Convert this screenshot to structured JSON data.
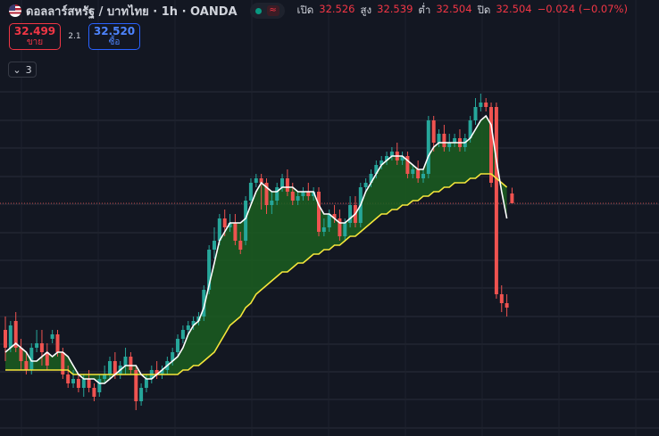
{
  "header": {
    "symbol_title": "ดอลลาร์สหรัฐ / บาทไทย · 1h · OANDA",
    "ohlc": [
      {
        "label": "เปิด",
        "value": "32.526"
      },
      {
        "label": "สูง",
        "value": "32.539"
      },
      {
        "label": "ต่ำ",
        "value": "32.504"
      },
      {
        "label": "ปิด",
        "value": "32.504"
      }
    ],
    "change": "−0.024 (−0.07%)"
  },
  "trade": {
    "sell_price": "32.499",
    "sell_label": "ขาย",
    "spread": "2.1",
    "buy_price": "32.520",
    "buy_label": "ซื้อ"
  },
  "indicators": {
    "count": "3"
  },
  "colors": {
    "background": "#131722",
    "up": "#26a69a",
    "down": "#ef5350",
    "fast_ma": "#ffffff",
    "slow_ma": "#f5e63a",
    "cloud_fill": "#1b5e20",
    "accent_red": "#f23645",
    "accent_blue": "#2962ff"
  },
  "chart_data": {
    "type": "candlestick",
    "y_range": [
      32.02,
      32.77
    ],
    "last_price": 32.504,
    "series": [
      {
        "name": "",
        "values": [
          {
            "o": 32.22,
            "h": 32.25,
            "c": 32.18,
            "l": 32.15
          },
          {
            "o": 32.18,
            "h": 32.24,
            "c": 32.23,
            "l": 32.17
          },
          {
            "o": 32.24,
            "h": 32.26,
            "c": 32.18,
            "l": 32.17
          },
          {
            "o": 32.18,
            "h": 32.2,
            "c": 32.15,
            "l": 32.13
          },
          {
            "o": 32.15,
            "h": 32.17,
            "c": 32.13,
            "l": 32.12
          },
          {
            "o": 32.13,
            "h": 32.19,
            "c": 32.18,
            "l": 32.12
          },
          {
            "o": 32.18,
            "h": 32.22,
            "c": 32.19,
            "l": 32.17
          },
          {
            "o": 32.19,
            "h": 32.22,
            "c": 32.17,
            "l": 32.14
          },
          {
            "o": 32.17,
            "h": 32.19,
            "c": 32.14,
            "l": 32.13
          },
          {
            "o": 32.2,
            "h": 32.22,
            "c": 32.21,
            "l": 32.19
          },
          {
            "o": 32.21,
            "h": 32.22,
            "c": 32.17,
            "l": 32.16
          },
          {
            "o": 32.17,
            "h": 32.18,
            "c": 32.12,
            "l": 32.11
          },
          {
            "o": 32.12,
            "h": 32.14,
            "c": 32.1,
            "l": 32.09
          },
          {
            "o": 32.1,
            "h": 32.13,
            "c": 32.11,
            "l": 32.09
          },
          {
            "o": 32.11,
            "h": 32.12,
            "c": 32.09,
            "l": 32.08
          },
          {
            "o": 32.09,
            "h": 32.12,
            "c": 32.11,
            "l": 32.07
          },
          {
            "o": 32.11,
            "h": 32.13,
            "c": 32.09,
            "l": 32.08
          },
          {
            "o": 32.09,
            "h": 32.1,
            "c": 32.07,
            "l": 32.06
          },
          {
            "o": 32.08,
            "h": 32.12,
            "c": 32.11,
            "l": 32.07
          },
          {
            "o": 32.11,
            "h": 32.14,
            "c": 32.12,
            "l": 32.1
          },
          {
            "o": 32.12,
            "h": 32.16,
            "c": 32.15,
            "l": 32.11
          },
          {
            "o": 32.15,
            "h": 32.17,
            "c": 32.12,
            "l": 32.11
          },
          {
            "o": 32.12,
            "h": 32.15,
            "c": 32.14,
            "l": 32.11
          },
          {
            "o": 32.14,
            "h": 32.18,
            "c": 32.16,
            "l": 32.12
          },
          {
            "o": 32.16,
            "h": 32.17,
            "c": 32.13,
            "l": 32.12
          },
          {
            "o": 32.13,
            "h": 32.14,
            "c": 32.06,
            "l": 32.04
          },
          {
            "o": 32.06,
            "h": 32.1,
            "c": 32.09,
            "l": 32.05
          },
          {
            "o": 32.09,
            "h": 32.12,
            "c": 32.11,
            "l": 32.08
          },
          {
            "o": 32.11,
            "h": 32.14,
            "c": 32.13,
            "l": 32.1
          },
          {
            "o": 32.13,
            "h": 32.15,
            "c": 32.12,
            "l": 32.11
          },
          {
            "o": 32.12,
            "h": 32.14,
            "c": 32.13,
            "l": 32.11
          },
          {
            "o": 32.13,
            "h": 32.16,
            "c": 32.15,
            "l": 32.12
          },
          {
            "o": 32.15,
            "h": 32.18,
            "c": 32.17,
            "l": 32.14
          },
          {
            "o": 32.17,
            "h": 32.21,
            "c": 32.2,
            "l": 32.16
          },
          {
            "o": 32.2,
            "h": 32.23,
            "c": 32.22,
            "l": 32.19
          },
          {
            "o": 32.22,
            "h": 32.24,
            "c": 32.23,
            "l": 32.21
          },
          {
            "o": 32.23,
            "h": 32.25,
            "c": 32.24,
            "l": 32.22
          },
          {
            "o": 32.24,
            "h": 32.26,
            "c": 32.25,
            "l": 32.23
          },
          {
            "o": 32.25,
            "h": 32.32,
            "c": 32.31,
            "l": 32.24
          },
          {
            "o": 32.31,
            "h": 32.41,
            "c": 32.4,
            "l": 32.3
          },
          {
            "o": 32.4,
            "h": 32.45,
            "c": 32.42,
            "l": 32.38
          },
          {
            "o": 32.42,
            "h": 32.48,
            "c": 32.47,
            "l": 32.41
          },
          {
            "o": 32.47,
            "h": 32.49,
            "c": 32.45,
            "l": 32.43
          },
          {
            "o": 32.45,
            "h": 32.48,
            "c": 32.46,
            "l": 32.44
          },
          {
            "o": 32.46,
            "h": 32.48,
            "c": 32.42,
            "l": 32.41
          },
          {
            "o": 32.42,
            "h": 32.44,
            "c": 32.4,
            "l": 32.39
          },
          {
            "o": 32.42,
            "h": 32.52,
            "c": 32.51,
            "l": 32.41
          },
          {
            "o": 32.51,
            "h": 32.56,
            "c": 32.55,
            "l": 32.5
          },
          {
            "o": 32.55,
            "h": 32.57,
            "c": 32.56,
            "l": 32.54
          },
          {
            "o": 32.56,
            "h": 32.57,
            "c": 32.55,
            "l": 32.49
          },
          {
            "o": 32.55,
            "h": 32.56,
            "c": 32.5,
            "l": 32.48
          },
          {
            "o": 32.5,
            "h": 32.53,
            "c": 32.51,
            "l": 32.48
          },
          {
            "o": 32.51,
            "h": 32.55,
            "c": 32.54,
            "l": 32.5
          },
          {
            "o": 32.54,
            "h": 32.57,
            "c": 32.56,
            "l": 32.53
          },
          {
            "o": 32.56,
            "h": 32.58,
            "c": 32.53,
            "l": 32.52
          },
          {
            "o": 32.53,
            "h": 32.55,
            "c": 32.51,
            "l": 32.5
          },
          {
            "o": 32.51,
            "h": 32.53,
            "c": 32.52,
            "l": 32.5
          },
          {
            "o": 32.52,
            "h": 32.54,
            "c": 32.53,
            "l": 32.51
          },
          {
            "o": 32.53,
            "h": 32.55,
            "c": 32.52,
            "l": 32.51
          },
          {
            "o": 32.52,
            "h": 32.54,
            "c": 32.53,
            "l": 32.51
          },
          {
            "o": 32.53,
            "h": 32.54,
            "c": 32.44,
            "l": 32.43
          },
          {
            "o": 32.44,
            "h": 32.47,
            "c": 32.45,
            "l": 32.43
          },
          {
            "o": 32.45,
            "h": 32.49,
            "c": 32.48,
            "l": 32.44
          },
          {
            "o": 32.48,
            "h": 32.5,
            "c": 32.47,
            "l": 32.46
          },
          {
            "o": 32.47,
            "h": 32.49,
            "c": 32.43,
            "l": 32.42
          },
          {
            "o": 32.43,
            "h": 32.47,
            "c": 32.46,
            "l": 32.42
          },
          {
            "o": 32.46,
            "h": 32.52,
            "c": 32.5,
            "l": 32.45
          },
          {
            "o": 32.5,
            "h": 32.52,
            "c": 32.46,
            "l": 32.45
          },
          {
            "o": 32.46,
            "h": 32.55,
            "c": 32.54,
            "l": 32.45
          },
          {
            "o": 32.54,
            "h": 32.56,
            "c": 32.55,
            "l": 32.53
          },
          {
            "o": 32.55,
            "h": 32.58,
            "c": 32.57,
            "l": 32.54
          },
          {
            "o": 32.57,
            "h": 32.6,
            "c": 32.59,
            "l": 32.56
          },
          {
            "o": 32.59,
            "h": 32.61,
            "c": 32.6,
            "l": 32.58
          },
          {
            "o": 32.6,
            "h": 32.62,
            "c": 32.61,
            "l": 32.59
          },
          {
            "o": 32.61,
            "h": 32.63,
            "c": 32.62,
            "l": 32.6
          },
          {
            "o": 32.62,
            "h": 32.64,
            "c": 32.6,
            "l": 32.59
          },
          {
            "o": 32.6,
            "h": 32.62,
            "c": 32.61,
            "l": 32.59
          },
          {
            "o": 32.61,
            "h": 32.62,
            "c": 32.57,
            "l": 32.56
          },
          {
            "o": 32.57,
            "h": 32.59,
            "c": 32.58,
            "l": 32.56
          },
          {
            "o": 32.58,
            "h": 32.6,
            "c": 32.56,
            "l": 32.55
          },
          {
            "o": 32.56,
            "h": 32.58,
            "c": 32.57,
            "l": 32.55
          },
          {
            "o": 32.57,
            "h": 32.7,
            "c": 32.69,
            "l": 32.56
          },
          {
            "o": 32.69,
            "h": 32.7,
            "c": 32.64,
            "l": 32.62
          },
          {
            "o": 32.64,
            "h": 32.67,
            "c": 32.66,
            "l": 32.63
          },
          {
            "o": 32.66,
            "h": 32.68,
            "c": 32.63,
            "l": 32.62
          },
          {
            "o": 32.63,
            "h": 32.66,
            "c": 32.64,
            "l": 32.62
          },
          {
            "o": 32.64,
            "h": 32.66,
            "c": 32.65,
            "l": 32.63
          },
          {
            "o": 32.65,
            "h": 32.67,
            "c": 32.63,
            "l": 32.62
          },
          {
            "o": 32.63,
            "h": 32.66,
            "c": 32.65,
            "l": 32.62
          },
          {
            "o": 32.65,
            "h": 32.7,
            "c": 32.69,
            "l": 32.64
          },
          {
            "o": 32.69,
            "h": 32.74,
            "c": 32.72,
            "l": 32.68
          },
          {
            "o": 32.72,
            "h": 32.75,
            "c": 32.73,
            "l": 32.71
          },
          {
            "o": 32.73,
            "h": 32.74,
            "c": 32.72,
            "l": 32.71
          },
          {
            "o": 32.72,
            "h": 32.73,
            "c": 32.55,
            "l": 32.54
          },
          {
            "o": 32.72,
            "h": 32.73,
            "c": 32.3,
            "l": 32.29
          },
          {
            "o": 32.3,
            "h": 32.32,
            "c": 32.28,
            "l": 32.26
          },
          {
            "o": 32.28,
            "h": 32.3,
            "c": 32.27,
            "l": 32.25
          },
          {
            "o": 32.526,
            "h": 32.539,
            "c": 32.504,
            "l": 32.504
          }
        ]
      }
    ],
    "fast_ma": [
      32.17,
      32.18,
      32.19,
      32.18,
      32.17,
      32.15,
      32.15,
      32.16,
      32.17,
      32.16,
      32.17,
      32.17,
      32.16,
      32.14,
      32.12,
      32.11,
      32.11,
      32.11,
      32.1,
      32.1,
      32.11,
      32.12,
      32.13,
      32.14,
      32.14,
      32.14,
      32.12,
      32.11,
      32.11,
      32.12,
      32.13,
      32.14,
      32.15,
      32.16,
      32.18,
      32.21,
      32.23,
      32.24,
      32.27,
      32.32,
      32.37,
      32.42,
      32.44,
      32.46,
      32.46,
      32.46,
      32.47,
      32.5,
      32.53,
      32.55,
      32.54,
      32.53,
      32.53,
      32.54,
      32.54,
      32.54,
      32.53,
      32.53,
      32.53,
      32.53,
      32.5,
      32.48,
      32.48,
      32.47,
      32.46,
      32.46,
      32.47,
      32.48,
      32.5,
      32.53,
      32.55,
      32.57,
      32.59,
      32.6,
      32.61,
      32.61,
      32.61,
      32.6,
      32.59,
      32.58,
      32.58,
      32.61,
      32.63,
      32.64,
      32.64,
      32.64,
      32.64,
      32.64,
      32.64,
      32.65,
      32.67,
      32.69,
      32.7,
      32.68,
      32.6,
      32.53,
      32.47
    ],
    "slow_ma": [
      32.13,
      32.13,
      32.13,
      32.13,
      32.13,
      32.13,
      32.13,
      32.13,
      32.13,
      32.13,
      32.13,
      32.13,
      32.13,
      32.12,
      32.12,
      32.12,
      32.12,
      32.12,
      32.12,
      32.12,
      32.12,
      32.12,
      32.12,
      32.12,
      32.12,
      32.12,
      32.12,
      32.12,
      32.12,
      32.12,
      32.12,
      32.12,
      32.12,
      32.12,
      32.13,
      32.13,
      32.14,
      32.14,
      32.15,
      32.16,
      32.17,
      32.19,
      32.21,
      32.23,
      32.24,
      32.25,
      32.27,
      32.28,
      32.3,
      32.31,
      32.32,
      32.33,
      32.34,
      32.35,
      32.35,
      32.36,
      32.37,
      32.37,
      32.38,
      32.39,
      32.39,
      32.4,
      32.4,
      32.41,
      32.41,
      32.42,
      32.43,
      32.43,
      32.44,
      32.45,
      32.46,
      32.47,
      32.48,
      32.48,
      32.49,
      32.49,
      32.5,
      32.5,
      32.51,
      32.51,
      32.52,
      32.52,
      32.53,
      32.53,
      32.54,
      32.54,
      32.55,
      32.55,
      32.55,
      32.56,
      32.56,
      32.57,
      32.57,
      32.57,
      32.56,
      32.55,
      32.54
    ]
  }
}
